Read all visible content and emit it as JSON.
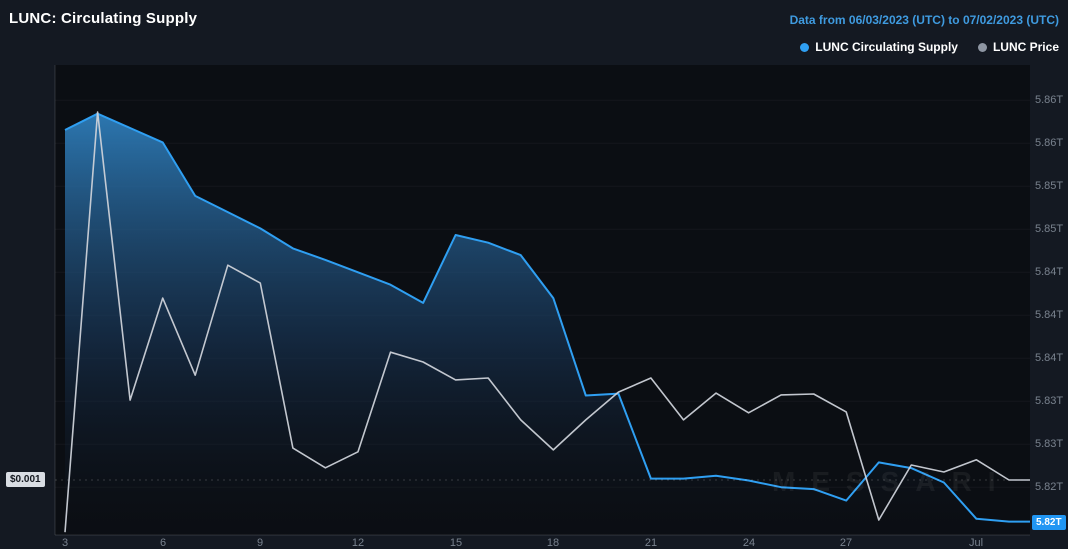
{
  "header": {
    "title": "LUNC: Circulating Supply",
    "date_range": "Data from 06/03/2023 (UTC) to 07/02/2023 (UTC)"
  },
  "legend": [
    {
      "label": "LUNC Circulating Supply",
      "color": "#2f9ff2"
    },
    {
      "label": "LUNC Price",
      "color": "#8e96a3"
    }
  ],
  "badges": {
    "price_current": "$0.001",
    "supply_current": "5.82T"
  },
  "watermark": "MESSARI",
  "colors": {
    "background": "#141922",
    "plot_background": "#0b0e13",
    "supply_line": "#2f9ff2",
    "price_line": "#ccd1d8",
    "axis_text": "#79828e",
    "accent_blue": "#2196f3"
  },
  "chart_data": {
    "type": "area",
    "title": "LUNC: Circulating Supply",
    "date_start": "06/03/2023",
    "date_end": "07/02/2023",
    "x_unit": "day",
    "x_ticks": [
      {
        "label": "3",
        "index": 0
      },
      {
        "label": "6",
        "index": 3
      },
      {
        "label": "9",
        "index": 6
      },
      {
        "label": "12",
        "index": 9
      },
      {
        "label": "15",
        "index": 12
      },
      {
        "label": "18",
        "index": 15
      },
      {
        "label": "21",
        "index": 18
      },
      {
        "label": "24",
        "index": 21
      },
      {
        "label": "27",
        "index": 24
      },
      {
        "label": "Jul",
        "index": 28
      }
    ],
    "y_axis_right": {
      "unit": "T",
      "tick_values": [
        5.8625,
        5.858,
        5.8535,
        5.849,
        5.8445,
        5.84,
        5.8355,
        5.831,
        5.8265,
        5.822
      ],
      "tick_labels": [
        "5.86T",
        "5.86T",
        "5.85T",
        "5.85T",
        "5.84T",
        "5.84T",
        "5.84T",
        "5.83T",
        "5.83T",
        "5.82T"
      ]
    },
    "supply_domain": [
      5.817,
      5.8662
    ],
    "series": [
      {
        "name": "LUNC Circulating Supply",
        "type": "area",
        "axis": "right",
        "unit": "trillions",
        "values": [
          5.8594,
          5.8611,
          5.8596,
          5.8581,
          5.8525,
          5.8508,
          5.8491,
          5.847,
          5.8458,
          5.8445,
          5.8432,
          5.8413,
          5.8484,
          5.8476,
          5.8463,
          5.8418,
          5.8316,
          5.8318,
          5.8229,
          5.8229,
          5.8232,
          5.8227,
          5.822,
          5.8218,
          5.8206,
          5.8246,
          5.824,
          5.8225,
          5.8187,
          5.8184
        ],
        "last_label": "5.82T"
      },
      {
        "name": "LUNC Price",
        "type": "line",
        "axis": "left",
        "unit": "relative_0_100",
        "values": [
          0.6,
          90,
          28.7,
          50.4,
          34,
          57.4,
          53.6,
          18.5,
          14.3,
          17.7,
          38.9,
          36.8,
          33,
          33.4,
          24.5,
          18.1,
          24.5,
          30.4,
          33.4,
          24.5,
          30.2,
          26,
          29.8,
          30,
          26.2,
          3.2,
          14.9,
          13.4,
          16,
          11.7
        ],
        "last_label": "$0.001"
      }
    ]
  }
}
